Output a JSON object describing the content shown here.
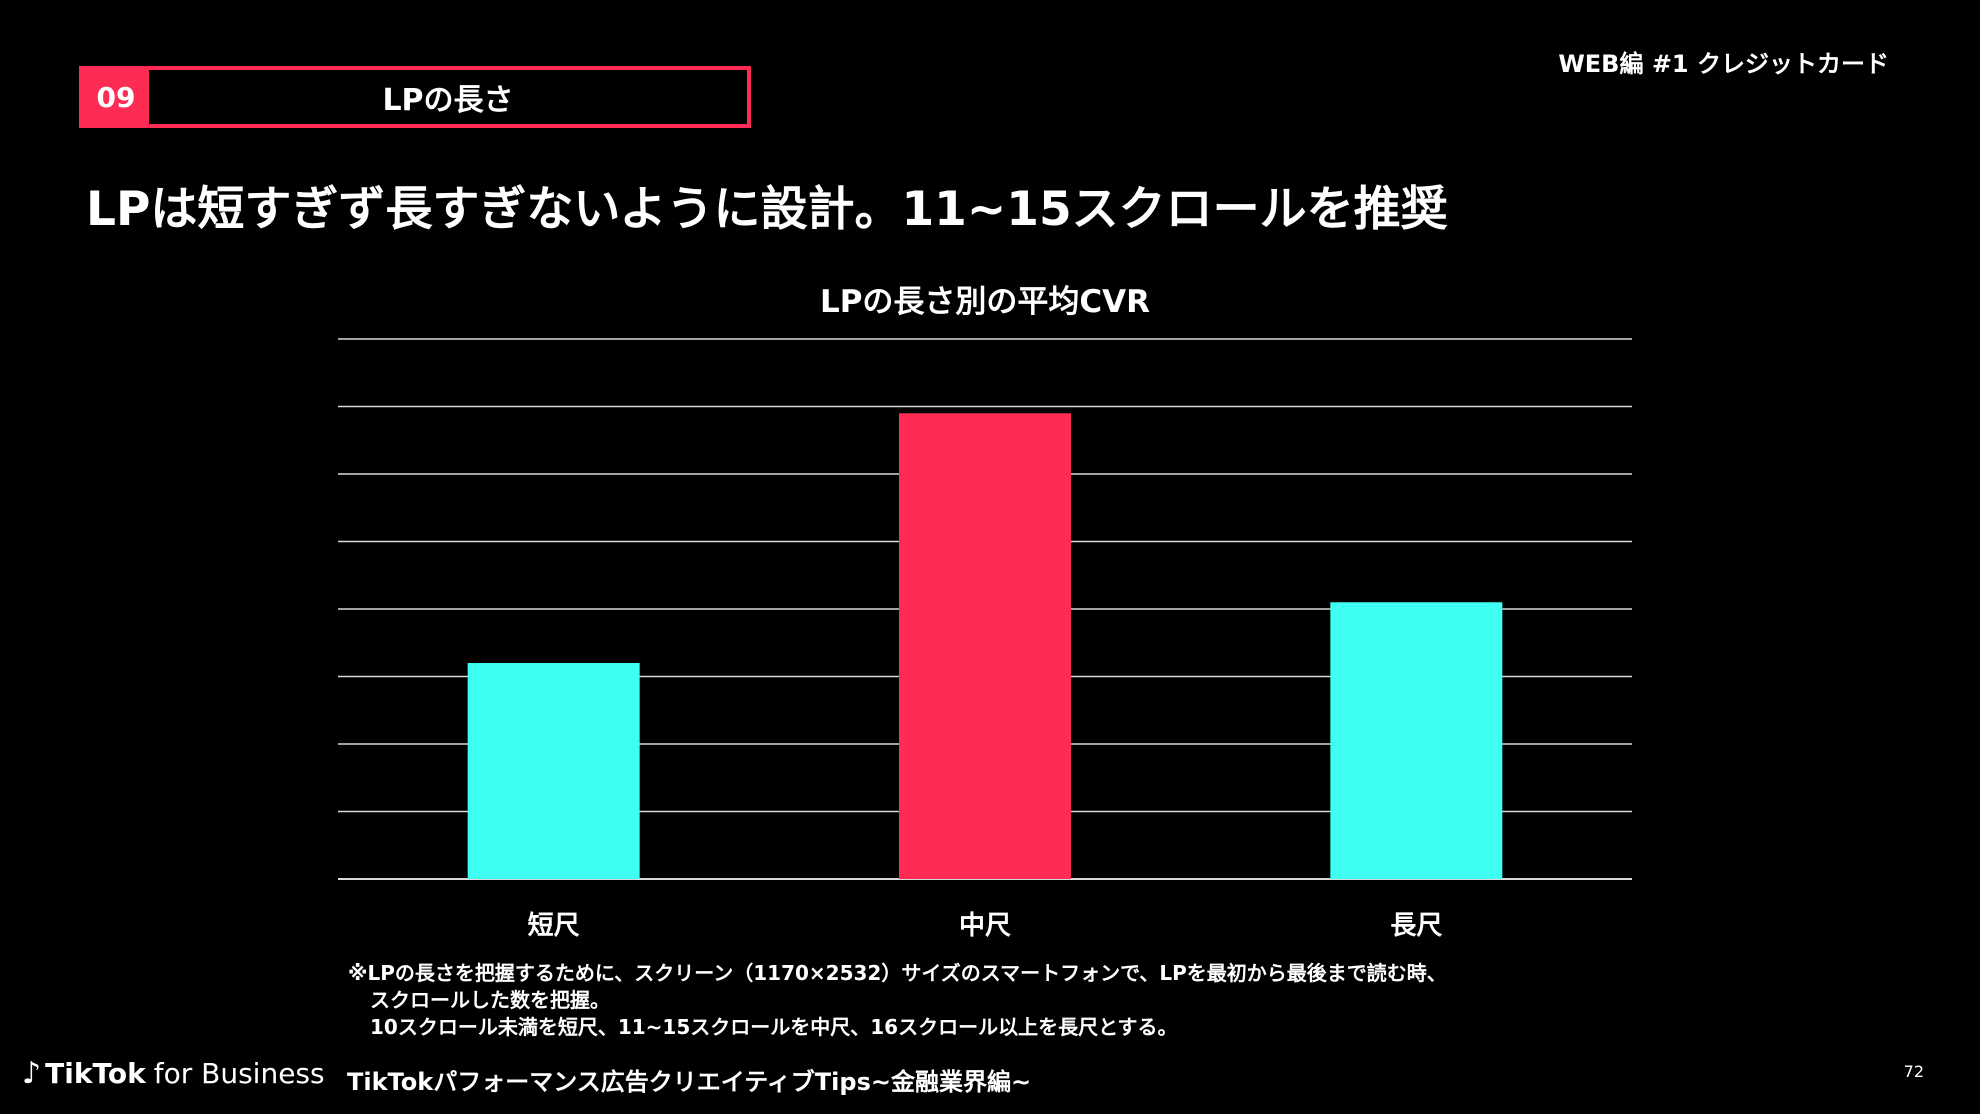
{
  "header": {
    "number": "09",
    "section_title": "LPの長さ",
    "category": "WEB編 #1 クレジットカード"
  },
  "headline": "LPは短すぎず長すぎないように設計。11~15スクロールを推奨",
  "chart_data": {
    "type": "bar",
    "title": "LPの長さ別の平均CVR",
    "categories": [
      "短尺",
      "中尺",
      "長尺"
    ],
    "values": [
      3.2,
      6.9,
      4.1
    ],
    "ylim": [
      0,
      8
    ],
    "grid": true,
    "colors": [
      "#3ffff2",
      "#fe2c55",
      "#3ffff2"
    ]
  },
  "note": {
    "line1": "※LPの長さを把握するために、スクリーン（1170×2532）サイズのスマートフォンで、LPを最初から最後まで読む時、",
    "line2": "スクロールした数を把握。",
    "line3": "10スクロール未満を短尺、11~15スクロールを中尺、16スクロール以上を長尺とする。"
  },
  "footer": {
    "logo_icon": "tiktok-note-icon",
    "brand": "TikTok",
    "brand_suffix": "for Business",
    "title": "TikTokパフォーマンス広告クリエイティブTips~金融業界編~",
    "page": "72"
  }
}
